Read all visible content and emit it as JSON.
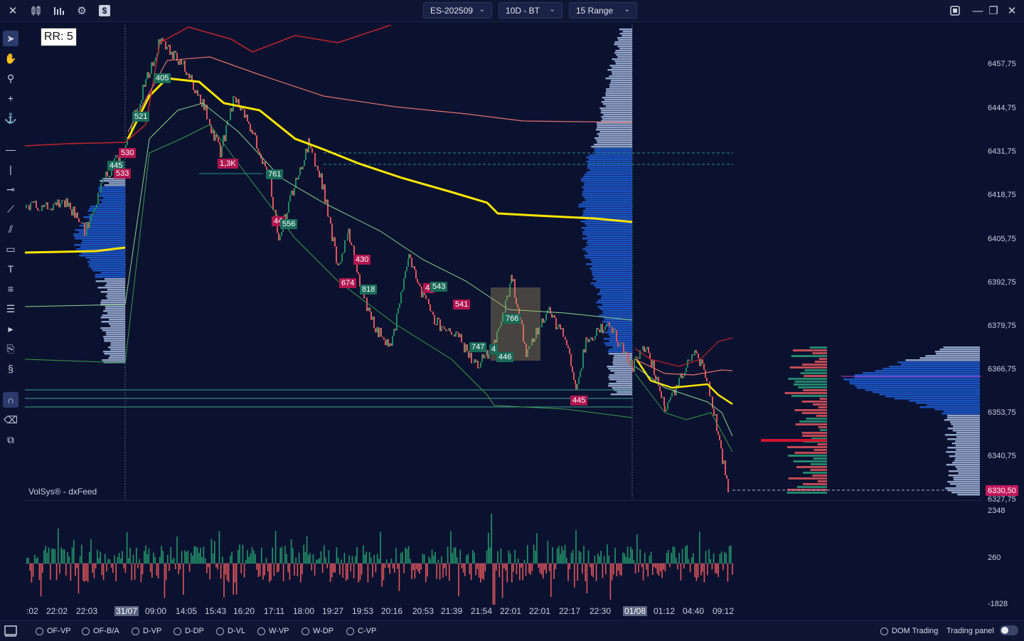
{
  "topbar": {
    "symbol": "ES-202509",
    "period": "10D - BT",
    "range": "15 Range",
    "icons": [
      "close-icon",
      "bar-compare-icon",
      "bar-chart-icon",
      "gear-icon",
      "dollar-icon"
    ],
    "window_icons": [
      "screenshot-icon",
      "minimize-icon",
      "restore-icon",
      "close-window-icon"
    ]
  },
  "chart": {
    "rr_label": "RR: 5",
    "watermark": "VolSys® - dxFeed",
    "current_price": "6330,50",
    "price_labels": [
      "6457,75",
      "6444,75",
      "6431,75",
      "6418,75",
      "6405,75",
      "6392,75",
      "6379,75",
      "6366,75",
      "6353,75",
      "6340,75",
      "6327,75"
    ],
    "volume_labels": [
      "2348",
      "260",
      "-1828"
    ],
    "time_labels": [
      ":02",
      "22:02",
      "22:03",
      "31/07",
      "09:00",
      "14:05",
      "15:43",
      "16:20",
      "17:11",
      "18:00",
      "19:27",
      "19:53",
      "20:16",
      "20:53",
      "21:39",
      "21:54",
      "22:01",
      "22:01",
      "22:17",
      "22:30",
      "01/08",
      "01:12",
      "04:40",
      "09:12"
    ],
    "trade_tags": [
      {
        "text": "405",
        "kind": "g"
      },
      {
        "text": "521",
        "kind": "g"
      },
      {
        "text": "530",
        "kind": "r"
      },
      {
        "text": "445",
        "kind": "g"
      },
      {
        "text": "533",
        "kind": "r"
      },
      {
        "text": "1,3K",
        "kind": "r"
      },
      {
        "text": "761",
        "kind": "g"
      },
      {
        "text": "44",
        "kind": "r"
      },
      {
        "text": "556",
        "kind": "g"
      },
      {
        "text": "430",
        "kind": "r"
      },
      {
        "text": "674",
        "kind": "r"
      },
      {
        "text": "818",
        "kind": "g"
      },
      {
        "text": "4(",
        "kind": "r"
      },
      {
        "text": "543",
        "kind": "g"
      },
      {
        "text": "541",
        "kind": "r"
      },
      {
        "text": "766",
        "kind": "g"
      },
      {
        "text": "747",
        "kind": "g"
      },
      {
        "text": "4",
        "kind": "g"
      },
      {
        "text": "446",
        "kind": "g"
      },
      {
        "text": "445",
        "kind": "r"
      }
    ],
    "colors": {
      "bg": "#0b1230",
      "up": "#1f8a5f",
      "down": "#e0555a",
      "vwap": "#ffe600",
      "profile": "#1d5bd0",
      "profile_light": "#9fb2d9"
    }
  },
  "bottombar": {
    "studies": [
      "OF-VP",
      "OF-B/A",
      "D-VP",
      "D-DP",
      "D-VL",
      "W-VP",
      "W-DP",
      "C-VP"
    ],
    "dom_trading": "DOM Trading",
    "trading_panel": "Trading panel"
  },
  "left_tools": [
    "cursor-icon",
    "hand-icon",
    "zoom-icon",
    "crosshair-icon",
    "anchor-icon",
    "hline-icon",
    "vline-icon",
    "ray-icon",
    "trendline-icon",
    "channel-icon",
    "rectangle-icon",
    "text-icon",
    "fib-icon",
    "lines-icon",
    "arrow-icon",
    "order-icon",
    "settings-s-icon",
    "magnet-icon",
    "eraser-icon",
    "layers-icon"
  ]
}
